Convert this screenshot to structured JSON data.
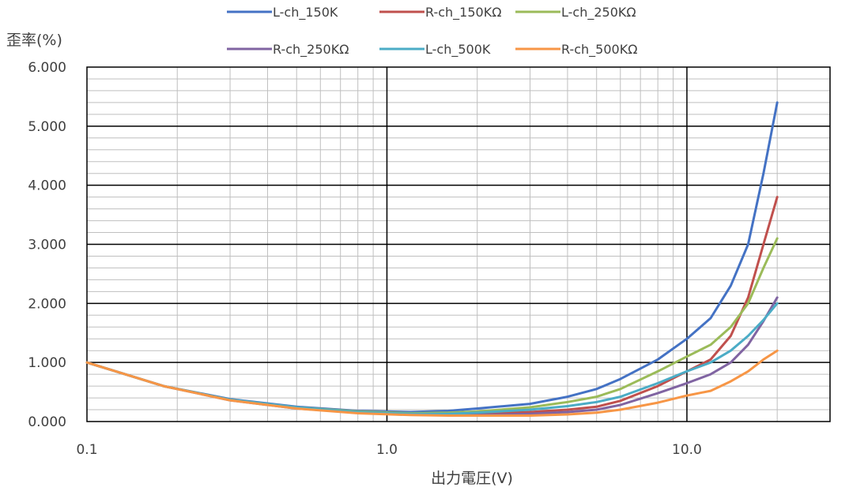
{
  "chart_data": {
    "type": "line",
    "title": "",
    "xlabel": "出力電圧(V)",
    "ylabel": "歪率(%)",
    "x_scale": "log",
    "xlim": [
      0.1,
      30
    ],
    "ylim": [
      0,
      6
    ],
    "x_ticks": [
      {
        "value": 0.1,
        "label": "0.1"
      },
      {
        "value": 1,
        "label": "1.0"
      },
      {
        "value": 10,
        "label": "10.0"
      }
    ],
    "y_ticks": [
      {
        "value": 0,
        "label": "0.000"
      },
      {
        "value": 1,
        "label": "1.000"
      },
      {
        "value": 2,
        "label": "2.000"
      },
      {
        "value": 3,
        "label": "3.000"
      },
      {
        "value": 4,
        "label": "4.000"
      },
      {
        "value": 5,
        "label": "5.000"
      },
      {
        "value": 6,
        "label": "6.000"
      }
    ],
    "grid": true,
    "legend_position": "top",
    "series": [
      {
        "name": "L-ch_150K",
        "color": "#4472C4",
        "points": [
          [
            0.1,
            1.0
          ],
          [
            0.18,
            0.6
          ],
          [
            0.3,
            0.38
          ],
          [
            0.5,
            0.25
          ],
          [
            0.8,
            0.18
          ],
          [
            1.2,
            0.16
          ],
          [
            1.6,
            0.18
          ],
          [
            2,
            0.22
          ],
          [
            3,
            0.3
          ],
          [
            4,
            0.42
          ],
          [
            5,
            0.55
          ],
          [
            6,
            0.72
          ],
          [
            8,
            1.05
          ],
          [
            10,
            1.4
          ],
          [
            12,
            1.75
          ],
          [
            14,
            2.3
          ],
          [
            16,
            3.0
          ],
          [
            18,
            4.2
          ],
          [
            20,
            5.4
          ]
        ]
      },
      {
        "name": "R-ch_150KΩ",
        "color": "#C0504D",
        "points": [
          [
            0.1,
            1.0
          ],
          [
            0.18,
            0.6
          ],
          [
            0.3,
            0.37
          ],
          [
            0.5,
            0.23
          ],
          [
            0.8,
            0.16
          ],
          [
            1.2,
            0.13
          ],
          [
            1.6,
            0.12
          ],
          [
            2,
            0.13
          ],
          [
            3,
            0.16
          ],
          [
            4,
            0.2
          ],
          [
            5,
            0.25
          ],
          [
            6,
            0.35
          ],
          [
            8,
            0.6
          ],
          [
            10,
            0.85
          ],
          [
            12,
            1.05
          ],
          [
            14,
            1.45
          ],
          [
            16,
            2.1
          ],
          [
            18,
            3.0
          ],
          [
            20,
            3.8
          ]
        ]
      },
      {
        "name": "L-ch_250KΩ",
        "color": "#9BBB59",
        "points": [
          [
            0.1,
            1.0
          ],
          [
            0.18,
            0.6
          ],
          [
            0.3,
            0.37
          ],
          [
            0.5,
            0.24
          ],
          [
            0.8,
            0.17
          ],
          [
            1.2,
            0.14
          ],
          [
            1.6,
            0.15
          ],
          [
            2,
            0.17
          ],
          [
            3,
            0.24
          ],
          [
            4,
            0.33
          ],
          [
            5,
            0.42
          ],
          [
            6,
            0.55
          ],
          [
            8,
            0.85
          ],
          [
            10,
            1.1
          ],
          [
            12,
            1.3
          ],
          [
            14,
            1.6
          ],
          [
            16,
            2.0
          ],
          [
            18,
            2.6
          ],
          [
            20,
            3.1
          ]
        ]
      },
      {
        "name": "R-ch_250KΩ",
        "color": "#8064A2",
        "points": [
          [
            0.1,
            1.0
          ],
          [
            0.18,
            0.6
          ],
          [
            0.3,
            0.36
          ],
          [
            0.5,
            0.22
          ],
          [
            0.8,
            0.15
          ],
          [
            1.2,
            0.12
          ],
          [
            1.6,
            0.11
          ],
          [
            2,
            0.11
          ],
          [
            3,
            0.13
          ],
          [
            4,
            0.16
          ],
          [
            5,
            0.2
          ],
          [
            6,
            0.28
          ],
          [
            8,
            0.48
          ],
          [
            10,
            0.65
          ],
          [
            12,
            0.8
          ],
          [
            14,
            1.0
          ],
          [
            16,
            1.3
          ],
          [
            18,
            1.7
          ],
          [
            20,
            2.1
          ]
        ]
      },
      {
        "name": "L-ch_500K",
        "color": "#4BACC6",
        "points": [
          [
            0.1,
            1.0
          ],
          [
            0.18,
            0.6
          ],
          [
            0.3,
            0.37
          ],
          [
            0.5,
            0.24
          ],
          [
            0.8,
            0.16
          ],
          [
            1.2,
            0.13
          ],
          [
            1.6,
            0.13
          ],
          [
            2,
            0.15
          ],
          [
            3,
            0.2
          ],
          [
            4,
            0.26
          ],
          [
            5,
            0.33
          ],
          [
            6,
            0.42
          ],
          [
            8,
            0.65
          ],
          [
            10,
            0.85
          ],
          [
            12,
            1.0
          ],
          [
            14,
            1.2
          ],
          [
            16,
            1.45
          ],
          [
            18,
            1.72
          ],
          [
            20,
            2.0
          ]
        ]
      },
      {
        "name": "R-ch_500KΩ",
        "color": "#F79646",
        "points": [
          [
            0.1,
            1.0
          ],
          [
            0.18,
            0.6
          ],
          [
            0.3,
            0.36
          ],
          [
            0.5,
            0.22
          ],
          [
            0.8,
            0.14
          ],
          [
            1.2,
            0.11
          ],
          [
            1.6,
            0.1
          ],
          [
            2,
            0.1
          ],
          [
            3,
            0.1
          ],
          [
            4,
            0.12
          ],
          [
            5,
            0.15
          ],
          [
            6,
            0.2
          ],
          [
            8,
            0.32
          ],
          [
            10,
            0.44
          ],
          [
            12,
            0.52
          ],
          [
            14,
            0.68
          ],
          [
            16,
            0.85
          ],
          [
            18,
            1.05
          ],
          [
            20,
            1.2
          ]
        ]
      }
    ]
  }
}
